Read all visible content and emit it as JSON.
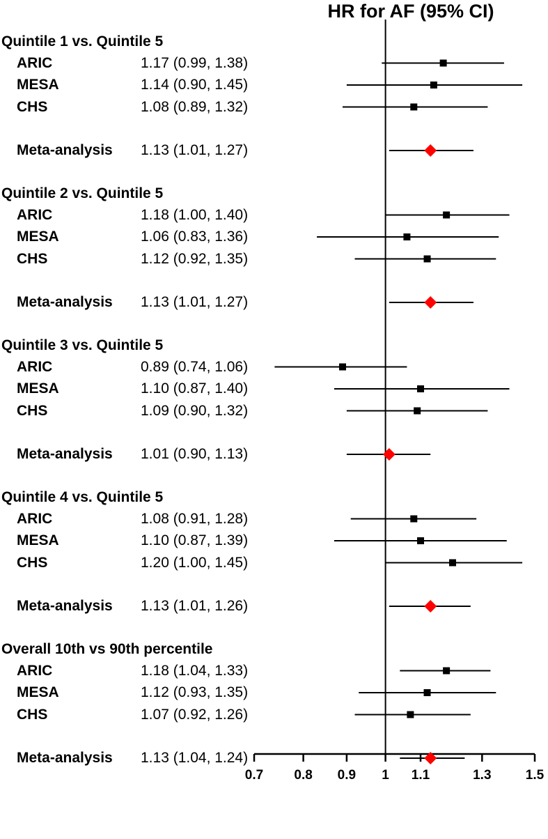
{
  "chart_data": {
    "type": "forest",
    "title": "HR for AF (95% CI)",
    "xlabel": "",
    "ylabel": "",
    "x_scale": "log",
    "xlim": [
      0.7,
      1.5
    ],
    "reference_line": 1,
    "x_ticks": [
      0.7,
      0.8,
      0.9,
      1,
      1.1,
      1.3,
      1.5
    ],
    "x_tick_labels": [
      "0.7",
      "0.8",
      "0.9",
      "1",
      "1.1",
      "1.3",
      "1.5"
    ],
    "groups": [
      {
        "label": "Quintile 1 vs. Quintile 5",
        "rows": [
          {
            "study": "ARIC",
            "hr": 1.17,
            "lo": 0.99,
            "hi": 1.38,
            "text": "1.17 (0.99, 1.38)",
            "marker": "square"
          },
          {
            "study": "MESA",
            "hr": 1.14,
            "lo": 0.9,
            "hi": 1.45,
            "text": "1.14 (0.90, 1.45)",
            "marker": "square"
          },
          {
            "study": "CHS",
            "hr": 1.08,
            "lo": 0.89,
            "hi": 1.32,
            "text": "1.08 (0.89, 1.32)",
            "marker": "square"
          },
          {
            "study": "Meta-analysis",
            "hr": 1.13,
            "lo": 1.01,
            "hi": 1.27,
            "text": "1.13 (1.01, 1.27)",
            "marker": "diamond"
          }
        ]
      },
      {
        "label": "Quintile 2 vs. Quintile 5",
        "rows": [
          {
            "study": "ARIC",
            "hr": 1.18,
            "lo": 1.0,
            "hi": 1.4,
            "text": "1.18 (1.00, 1.40)",
            "marker": "square"
          },
          {
            "study": "MESA",
            "hr": 1.06,
            "lo": 0.83,
            "hi": 1.36,
            "text": "1.06 (0.83, 1.36)",
            "marker": "square"
          },
          {
            "study": "CHS",
            "hr": 1.12,
            "lo": 0.92,
            "hi": 1.35,
            "text": "1.12 (0.92, 1.35)",
            "marker": "square"
          },
          {
            "study": "Meta-analysis",
            "hr": 1.13,
            "lo": 1.01,
            "hi": 1.27,
            "text": "1.13 (1.01, 1.27)",
            "marker": "diamond"
          }
        ]
      },
      {
        "label": "Quintile 3 vs. Quintile 5",
        "rows": [
          {
            "study": "ARIC",
            "hr": 0.89,
            "lo": 0.74,
            "hi": 1.06,
            "text": "0.89 (0.74, 1.06)",
            "marker": "square"
          },
          {
            "study": "MESA",
            "hr": 1.1,
            "lo": 0.87,
            "hi": 1.4,
            "text": "1.10 (0.87, 1.40)",
            "marker": "square"
          },
          {
            "study": "CHS",
            "hr": 1.09,
            "lo": 0.9,
            "hi": 1.32,
            "text": "1.09 (0.90, 1.32)",
            "marker": "square"
          },
          {
            "study": "Meta-analysis",
            "hr": 1.01,
            "lo": 0.9,
            "hi": 1.13,
            "text": "1.01 (0.90, 1.13)",
            "marker": "diamond"
          }
        ]
      },
      {
        "label": "Quintile 4 vs. Quintile 5",
        "rows": [
          {
            "study": "ARIC",
            "hr": 1.08,
            "lo": 0.91,
            "hi": 1.28,
            "text": "1.08 (0.91, 1.28)",
            "marker": "square"
          },
          {
            "study": "MESA",
            "hr": 1.1,
            "lo": 0.87,
            "hi": 1.39,
            "text": "1.10 (0.87, 1.39)",
            "marker": "square"
          },
          {
            "study": "CHS",
            "hr": 1.2,
            "lo": 1.0,
            "hi": 1.45,
            "text": "1.20 (1.00, 1.45)",
            "marker": "square"
          },
          {
            "study": "Meta-analysis",
            "hr": 1.13,
            "lo": 1.01,
            "hi": 1.26,
            "text": "1.13 (1.01, 1.26)",
            "marker": "diamond"
          }
        ]
      },
      {
        "label": "Overall 10th vs 90th percentile",
        "rows": [
          {
            "study": "ARIC",
            "hr": 1.18,
            "lo": 1.04,
            "hi": 1.33,
            "text": "1.18 (1.04, 1.33)",
            "marker": "square"
          },
          {
            "study": "MESA",
            "hr": 1.12,
            "lo": 0.93,
            "hi": 1.35,
            "text": "1.12 (0.93, 1.35)",
            "marker": "square"
          },
          {
            "study": "CHS",
            "hr": 1.07,
            "lo": 0.92,
            "hi": 1.26,
            "text": "1.07 (0.92, 1.26)",
            "marker": "square"
          },
          {
            "study": "Meta-analysis",
            "hr": 1.13,
            "lo": 1.04,
            "hi": 1.24,
            "text": "1.13 (1.04, 1.24)",
            "marker": "diamond"
          }
        ]
      }
    ],
    "colors": {
      "square": "#000000",
      "diamond": "#ff0000",
      "line": "#000000"
    }
  }
}
